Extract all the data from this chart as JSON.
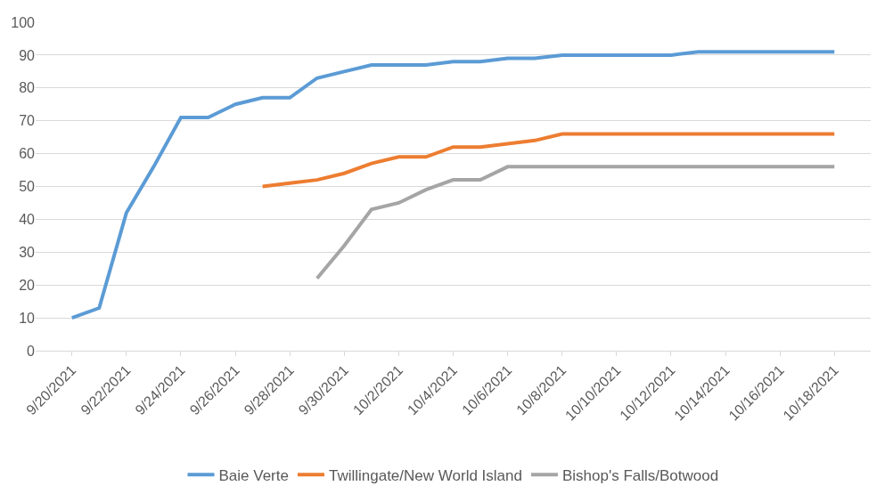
{
  "chart_data": {
    "type": "line",
    "x": [
      "2021-09-20",
      "2021-09-21",
      "2021-09-22",
      "2021-09-23",
      "2021-09-24",
      "2021-09-25",
      "2021-09-26",
      "2021-09-27",
      "2021-09-28",
      "2021-09-29",
      "2021-09-30",
      "2021-10-01",
      "2021-10-02",
      "2021-10-03",
      "2021-10-04",
      "2021-10-05",
      "2021-10-06",
      "2021-10-07",
      "2021-10-08",
      "2021-10-09",
      "2021-10-10",
      "2021-10-11",
      "2021-10-12",
      "2021-10-13",
      "2021-10-14",
      "2021-10-15",
      "2021-10-16",
      "2021-10-17",
      "2021-10-18"
    ],
    "series": [
      {
        "name": "Baie Verte",
        "color": "#5b9bd5",
        "values": [
          10,
          13,
          42,
          56,
          71,
          71,
          75,
          77,
          77,
          83,
          85,
          87,
          87,
          87,
          88,
          88,
          89,
          89,
          90,
          90,
          90,
          90,
          90,
          91,
          91,
          91,
          91,
          91,
          91
        ]
      },
      {
        "name": "Twillingate/New World Island",
        "color": "#ed7d31",
        "values": [
          null,
          null,
          null,
          null,
          null,
          null,
          null,
          50,
          51,
          52,
          54,
          57,
          59,
          59,
          62,
          62,
          63,
          64,
          66,
          66,
          66,
          66,
          66,
          66,
          66,
          66,
          66,
          66,
          66
        ]
      },
      {
        "name": "Bishop's Falls/Botwood",
        "color": "#a5a5a5",
        "values": [
          null,
          null,
          null,
          null,
          null,
          null,
          null,
          null,
          null,
          22,
          32,
          43,
          45,
          49,
          52,
          52,
          56,
          56,
          56,
          56,
          56,
          56,
          56,
          56,
          56,
          56,
          56,
          56,
          56
        ]
      }
    ],
    "xlim": [
      "2021-09-18T16:00",
      "2021-10-19T08:00"
    ],
    "xticks": [
      {
        "value": "2021-09-20",
        "label": "9/20/2021"
      },
      {
        "value": "2021-09-22",
        "label": "9/22/2021"
      },
      {
        "value": "2021-09-24",
        "label": "9/24/2021"
      },
      {
        "value": "2021-09-26",
        "label": "9/26/2021"
      },
      {
        "value": "2021-09-28",
        "label": "9/28/2021"
      },
      {
        "value": "2021-09-30",
        "label": "9/30/2021"
      },
      {
        "value": "2021-10-02",
        "label": "10/2/2021"
      },
      {
        "value": "2021-10-04",
        "label": "10/4/2021"
      },
      {
        "value": "2021-10-06",
        "label": "10/6/2021"
      },
      {
        "value": "2021-10-08",
        "label": "10/8/2021"
      },
      {
        "value": "2021-10-10",
        "label": "10/10/2021"
      },
      {
        "value": "2021-10-12",
        "label": "10/12/2021"
      },
      {
        "value": "2021-10-14",
        "label": "10/14/2021"
      },
      {
        "value": "2021-10-16",
        "label": "10/16/2021"
      },
      {
        "value": "2021-10-18",
        "label": "10/18/2021"
      }
    ],
    "ylim": [
      0,
      100
    ],
    "yticks": [
      0,
      10,
      20,
      30,
      40,
      50,
      60,
      70,
      80,
      90,
      100
    ],
    "grid": "y",
    "legend": "bottom",
    "marker": "none",
    "line_style": "solid"
  }
}
